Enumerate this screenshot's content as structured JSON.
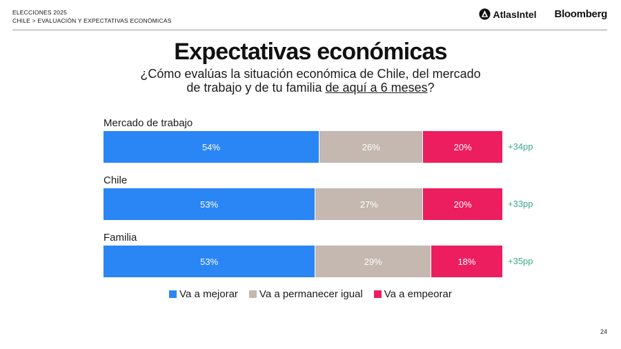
{
  "header": {
    "line1": "ELECCIONES 2025",
    "line2": "CHILE > EVALUACIÓN Y EXPECTATIVAS ECONÓMICAS",
    "brand_atlas": "AtlasIntel",
    "brand_bloomberg": "Bloomberg",
    "atlas_icon": "atlasintel-logo-icon"
  },
  "page_number": "24",
  "chart_data": {
    "type": "bar",
    "orientation": "horizontal",
    "stacked": true,
    "normalized_to_percent": true,
    "title": "Expectativas económicas",
    "subtitle_before": "¿Cómo evalúas la situación económica de Chile, del mercado",
    "subtitle_line2_before": "de trabajo y de tu familia ",
    "subtitle_underlined": "de aquí a 6 meses",
    "subtitle_after": "?",
    "legend_position": "bottom-center",
    "grid": false,
    "categories": [
      "Mercado de trabajo",
      "Chile",
      "Familia"
    ],
    "series": [
      {
        "name": "Va a mejorar",
        "color": "#2b86f5",
        "values": [
          54,
          53,
          53
        ],
        "labels": [
          "54%",
          "53%",
          "53%"
        ]
      },
      {
        "name": "Va a permanecer igual",
        "color": "#c4b8b0",
        "values": [
          26,
          27,
          29
        ],
        "labels": [
          "26%",
          "27%",
          "29%"
        ]
      },
      {
        "name": "Va a empeorar",
        "color": "#ec1e5f",
        "values": [
          20,
          20,
          18
        ],
        "labels": [
          "20%",
          "20%",
          "18%"
        ]
      }
    ],
    "net_balance": [
      "+34pp",
      "+33pp",
      "+35pp"
    ],
    "net_balance_color": "#3aa88a"
  }
}
